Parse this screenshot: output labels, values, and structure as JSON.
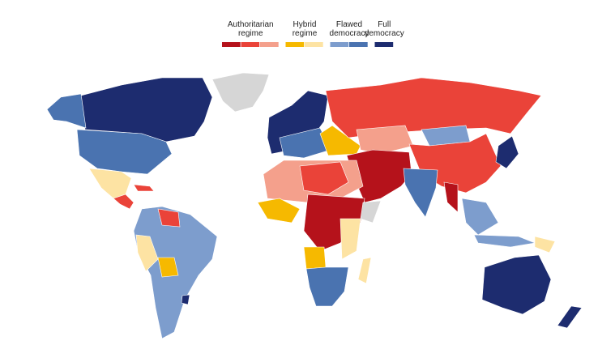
{
  "legend": {
    "groups": [
      {
        "label_lines": [
          "Authoritarian",
          "regime"
        ],
        "colors": [
          "#b5121b",
          "#ea4339",
          "#f4a08c"
        ]
      },
      {
        "label_lines": [
          "Hybrid",
          "regime"
        ],
        "colors": [
          "#f6b900",
          "#fde3a3"
        ]
      },
      {
        "label_lines": [
          "Flawed",
          "democracy"
        ],
        "colors": [
          "#7d9dcd",
          "#4a73b0"
        ]
      },
      {
        "label_lines": [
          "Full",
          "democracy"
        ],
        "colors": [
          "#1d2c6f"
        ]
      }
    ]
  }
}
